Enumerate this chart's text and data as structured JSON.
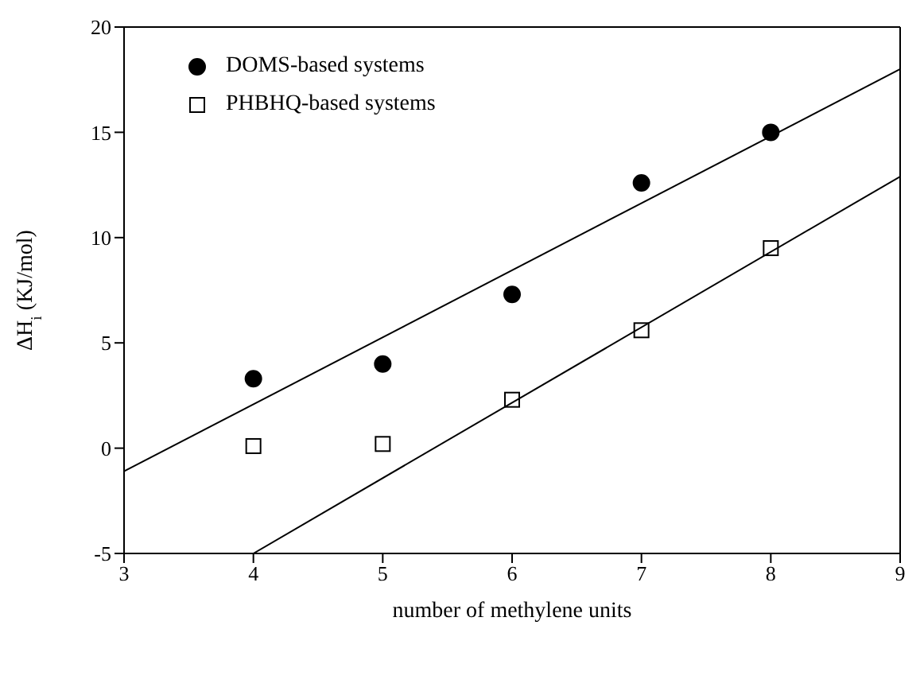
{
  "chart_data": {
    "type": "scatter",
    "xlabel": "number of methylene units",
    "ylabel": "ΔH$_{i}$ (KJ/mol)",
    "xlim": [
      3,
      9
    ],
    "xticks": [
      3,
      4,
      5,
      6,
      7,
      8,
      9
    ],
    "ylim": [
      -5,
      20
    ],
    "yticks": [
      -5,
      0,
      5,
      10,
      15,
      20
    ],
    "legend": "top left",
    "series": [
      {
        "name": "DOMS-based systems",
        "marker": "circle",
        "color": "#000000",
        "x": [
          4,
          5,
          6,
          7,
          8
        ],
        "values": [
          3.3,
          4.0,
          7.3,
          12.6,
          15.0
        ]
      },
      {
        "name": "PHBHQ-based systems",
        "marker": "square",
        "color": "#000000",
        "x": [
          4,
          5,
          6,
          7,
          8
        ],
        "values": [
          0.1,
          0.2,
          2.3,
          5.6,
          9.5
        ]
      },
      {
        "type": "line",
        "marker": "none",
        "color": "#000000",
        "x": [
          3,
          9
        ],
        "values": [
          -1.1,
          18.0
        ]
      },
      {
        "type": "line",
        "marker": "none",
        "color": "#000000",
        "x": [
          4,
          9
        ],
        "values": [
          -5,
          12.9
        ]
      }
    ]
  }
}
